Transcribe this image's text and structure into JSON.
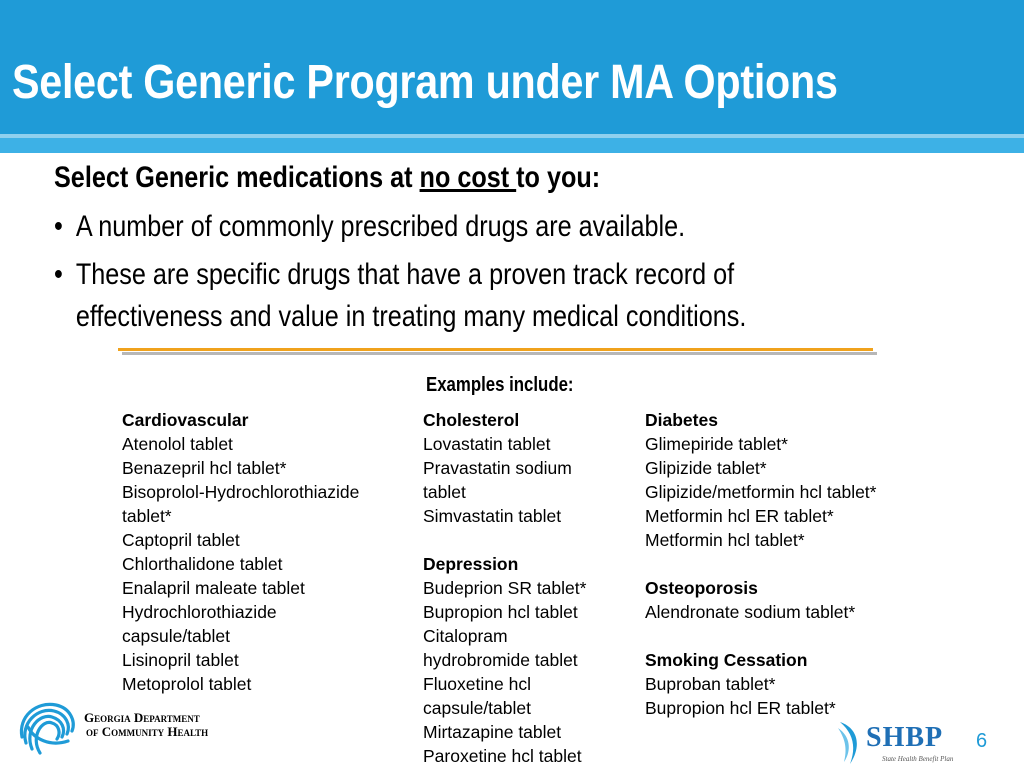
{
  "slide": {
    "title": "Select Generic Program under MA Options",
    "page_number": "6"
  },
  "intro": {
    "before": "Select Generic medications at ",
    "emphasis": "no cost ",
    "after": "to you:"
  },
  "bullets": [
    {
      "symbol": "•",
      "line1": "A number of commonly prescribed drugs are available."
    },
    {
      "symbol": "•",
      "line1": "These are specific drugs that have a proven track record of",
      "line2": "effectiveness and value in treating many medical conditions."
    }
  ],
  "examples_label": "Examples include:",
  "columns": {
    "cardiovascular": {
      "heading": "Cardiovascular",
      "items": [
        "Atenolol tablet",
        "Benazepril hcl tablet*",
        "Bisoprolol-Hydrochlorothiazide",
        "tablet*",
        "Captopril tablet",
        "Chlorthalidone tablet",
        "Enalapril maleate tablet",
        "Hydrochlorothiazide",
        "capsule/tablet",
        "Lisinopril tablet",
        "Metoprolol tablet"
      ]
    },
    "cholesterol": {
      "heading": "Cholesterol",
      "items": [
        "Lovastatin tablet",
        "Pravastatin sodium",
        "tablet",
        "Simvastatin tablet"
      ]
    },
    "depression": {
      "heading": "Depression",
      "items": [
        "Budeprion SR tablet*",
        "Bupropion hcl tablet",
        "Citalopram",
        "hydrobromide tablet",
        "Fluoxetine hcl",
        "capsule/tablet",
        "Mirtazapine tablet",
        "Paroxetine hcl tablet"
      ]
    },
    "diabetes": {
      "heading": "Diabetes",
      "items": [
        "Glimepiride tablet*",
        "Glipizide tablet*",
        "Glipizide/metformin hcl tablet*",
        "Metformin hcl ER tablet*",
        "Metformin hcl tablet*"
      ]
    },
    "osteoporosis": {
      "heading": "Osteoporosis",
      "items": [
        "Alendronate sodium tablet*"
      ]
    },
    "smoking": {
      "heading": "Smoking Cessation",
      "items": [
        "Buproban tablet*",
        "Bupropion hcl ER tablet*"
      ]
    }
  },
  "logos": {
    "gdch_line1": "Georgia Department",
    "gdch_line2": "of Community Health",
    "shbp_name": "SHBP",
    "shbp_sub": "State Health Benefit Plan"
  },
  "colors": {
    "title_bar": "#1f9bd7",
    "accent_orange": "#f0a21c",
    "shbp_blue": "#1f6fb5"
  }
}
